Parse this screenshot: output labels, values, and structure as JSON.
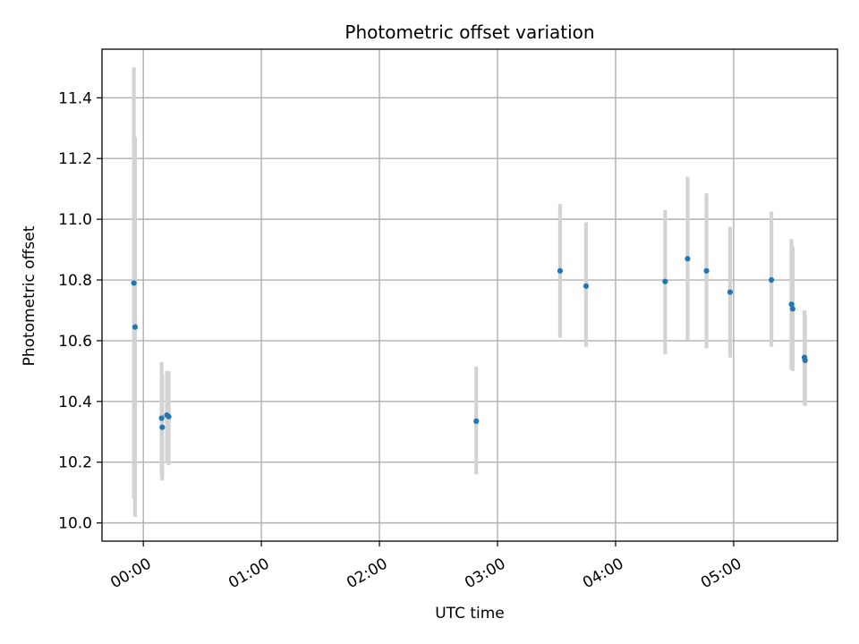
{
  "chart_data": {
    "type": "scatter",
    "title": "Photometric offset variation",
    "xlabel": "UTC time",
    "ylabel": "Photometric offset",
    "x_unit": "hours UTC",
    "xlim": [
      -0.35,
      5.88
    ],
    "ylim": [
      9.94,
      11.56
    ],
    "x_ticks": [
      {
        "value": 0,
        "label": "00:00"
      },
      {
        "value": 1,
        "label": "01:00"
      },
      {
        "value": 2,
        "label": "02:00"
      },
      {
        "value": 3,
        "label": "03:00"
      },
      {
        "value": 4,
        "label": "04:00"
      },
      {
        "value": 5,
        "label": "05:00"
      }
    ],
    "y_ticks": [
      {
        "value": 10.0,
        "label": "10.0"
      },
      {
        "value": 10.2,
        "label": "10.2"
      },
      {
        "value": 10.4,
        "label": "10.4"
      },
      {
        "value": 10.6,
        "label": "10.6"
      },
      {
        "value": 10.8,
        "label": "10.8"
      },
      {
        "value": 11.0,
        "label": "11.0"
      },
      {
        "value": 11.2,
        "label": "11.2"
      },
      {
        "value": 11.4,
        "label": "11.4"
      }
    ],
    "grid": true,
    "marker_color": "#1f77b4",
    "errorbar_color": "#d3d3d3",
    "points": [
      {
        "x": -0.08,
        "y": 10.79,
        "ylow": 10.08,
        "yhigh": 11.5
      },
      {
        "x": -0.07,
        "y": 10.645,
        "ylow": 10.02,
        "yhigh": 11.27
      },
      {
        "x": 0.155,
        "y": 10.345,
        "ylow": 10.16,
        "yhigh": 10.53
      },
      {
        "x": 0.16,
        "y": 10.315,
        "ylow": 10.14,
        "yhigh": 10.49
      },
      {
        "x": 0.2,
        "y": 10.355,
        "ylow": 10.2,
        "yhigh": 10.5
      },
      {
        "x": 0.215,
        "y": 10.35,
        "ylow": 10.19,
        "yhigh": 10.5
      },
      {
        "x": 2.82,
        "y": 10.335,
        "ylow": 10.16,
        "yhigh": 10.515
      },
      {
        "x": 3.53,
        "y": 10.83,
        "ylow": 10.61,
        "yhigh": 11.05
      },
      {
        "x": 3.75,
        "y": 10.78,
        "ylow": 10.58,
        "yhigh": 10.99
      },
      {
        "x": 4.42,
        "y": 10.795,
        "ylow": 10.555,
        "yhigh": 11.03
      },
      {
        "x": 4.61,
        "y": 10.87,
        "ylow": 10.6,
        "yhigh": 11.14
      },
      {
        "x": 4.77,
        "y": 10.83,
        "ylow": 10.575,
        "yhigh": 11.085
      },
      {
        "x": 4.97,
        "y": 10.76,
        "ylow": 10.545,
        "yhigh": 10.975
      },
      {
        "x": 5.32,
        "y": 10.8,
        "ylow": 10.58,
        "yhigh": 11.025
      },
      {
        "x": 5.49,
        "y": 10.72,
        "ylow": 10.505,
        "yhigh": 10.935
      },
      {
        "x": 5.5,
        "y": 10.705,
        "ylow": 10.5,
        "yhigh": 10.91
      },
      {
        "x": 5.6,
        "y": 10.545,
        "ylow": 10.39,
        "yhigh": 10.7
      },
      {
        "x": 5.605,
        "y": 10.535,
        "ylow": 10.385,
        "yhigh": 10.685
      }
    ]
  }
}
